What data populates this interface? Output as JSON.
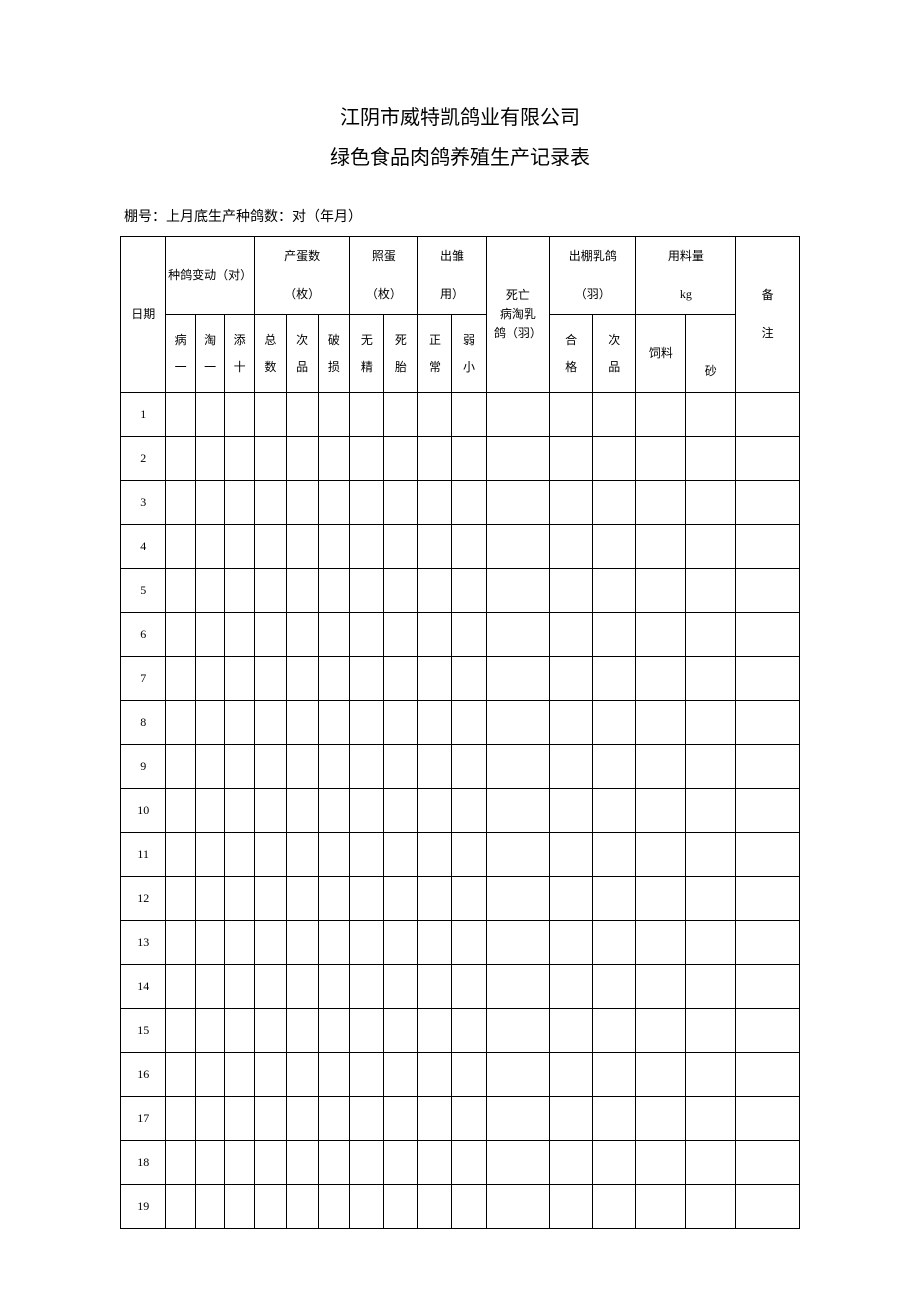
{
  "page": {
    "title": "江阴市威特凯鸽业有限公司",
    "subtitle": "绿色食品肉鸽养殖生产记录表",
    "meta": "棚号：上月底生产种鸽数：对（年月）",
    "background_color": "#ffffff",
    "border_color": "#000000",
    "text_color": "#000000",
    "title_fontsize": 20,
    "header_fontsize": 12,
    "body_fontsize": 12
  },
  "header_row1": {
    "c0": "日期",
    "c1": "种鸽变动（对）",
    "c2": "产蛋数\n\n（枚）",
    "c3": "照蛋\n\n（枚）",
    "c4": "出雏\n\n用）",
    "c5": "死亡\n病淘乳\n鸽（羽）",
    "c6": "出棚乳鸽\n\n（羽）",
    "c7": "用料量\n\nkg",
    "c8": "备\n\n注"
  },
  "header_row2": {
    "s0": "病\n一",
    "s1": "淘\n一",
    "s2": "添\n十",
    "s3": "总\n数",
    "s4": "次\n品",
    "s5": "破\n损",
    "s6": "无\n精",
    "s7": "死\n胎",
    "s8": "正\n常",
    "s9": "弱\n小",
    "s10": "合\n格",
    "s11": "次\n品",
    "s12": "饲料",
    "s13": "砂"
  },
  "rows": [
    "1",
    "2",
    "3",
    "4",
    "5",
    "6",
    "7",
    "8",
    "9",
    "10",
    "11",
    "12",
    "13",
    "14",
    "15",
    "16",
    "17",
    "18",
    "19"
  ]
}
